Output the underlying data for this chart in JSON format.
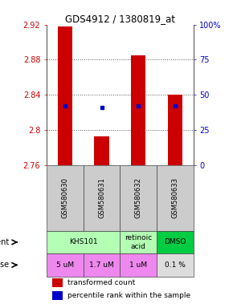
{
  "title": "GDS4912 / 1380819_at",
  "samples": [
    "GSM580630",
    "GSM580631",
    "GSM580632",
    "GSM580633"
  ],
  "bar_bottoms": [
    2.76,
    2.76,
    2.76,
    2.76
  ],
  "bar_tops": [
    2.918,
    2.793,
    2.885,
    2.84
  ],
  "percentile_values": [
    2.827,
    2.826,
    2.827,
    2.827
  ],
  "ymin": 2.76,
  "ymax": 2.92,
  "yticks_left": [
    2.76,
    2.8,
    2.84,
    2.88,
    2.92
  ],
  "yticks_right_vals": [
    2.76,
    2.8,
    2.84,
    2.88,
    2.92
  ],
  "yticks_right_labels": [
    "0",
    "25",
    "50",
    "75",
    "100%"
  ],
  "bar_color": "#cc0000",
  "blue_color": "#0000cc",
  "agent_colors": [
    "#b3ffb3",
    "#b3ffb3",
    "#00cc44"
  ],
  "agent_data": [
    [
      0,
      2,
      "KHS101"
    ],
    [
      2,
      1,
      "retinoic\nacid"
    ],
    [
      3,
      1,
      "DMSO"
    ]
  ],
  "dose_labels": [
    "5 uM",
    "1.7 uM",
    "1 uM",
    "0.1 %"
  ],
  "dose_color": "#ee88ee",
  "dose_color_last": "#dddddd",
  "grid_color": "#555555",
  "sample_bg": "#cccccc",
  "legend_red": "transformed count",
  "legend_blue": "percentile rank within the sample"
}
